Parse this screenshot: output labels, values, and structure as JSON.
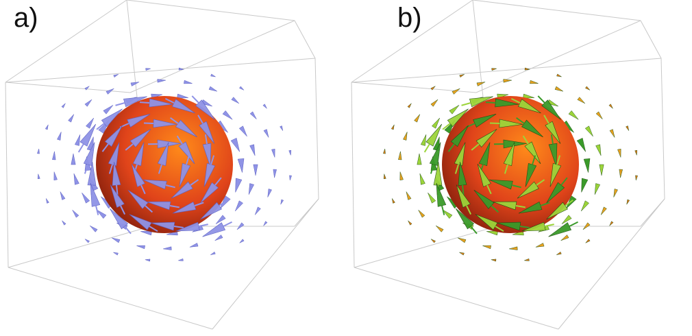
{
  "panels": [
    {
      "label": "a)",
      "arrow_color": "#8f93e6",
      "arrow_color_dark": "#5a5ec0",
      "sphere_colors": [
        "#ff8a1a",
        "#e0441a",
        "#7a1a0a"
      ]
    },
    {
      "label": "b)",
      "arrow_colors": [
        "#3a9a2a",
        "#9cd43a",
        "#e8a020",
        "#e07a18"
      ],
      "sphere_colors": [
        "#ff8a1a",
        "#e0441a",
        "#7a1a0a"
      ]
    }
  ],
  "box_color": "#c8c8c8"
}
